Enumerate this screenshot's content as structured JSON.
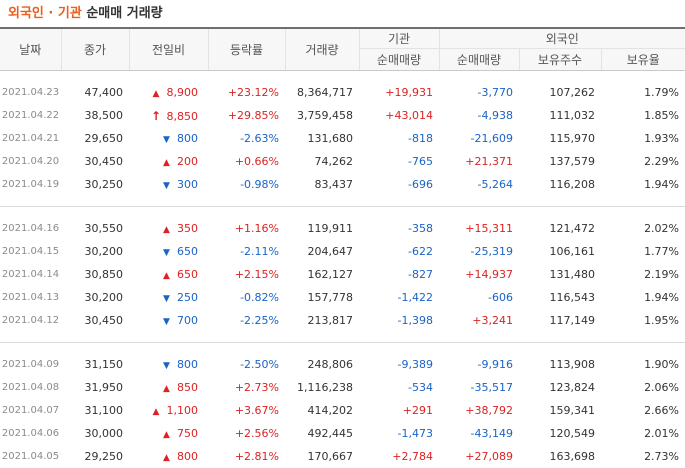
{
  "title": {
    "highlight": "외국인 · 기관",
    "rest": " 순매매 거래량"
  },
  "header": {
    "date": "날짜",
    "close": "종가",
    "change": "전일비",
    "rate": "등락률",
    "volume": "거래량",
    "institution": "기관",
    "foreign": "외국인",
    "inst_net": "순매매량",
    "for_net": "순매매량",
    "for_holding": "보유주수",
    "for_ratio": "보유율"
  },
  "colors": {
    "up": "#dd2222",
    "down": "#1a63c6",
    "accent": "#e8601c"
  },
  "groups": [
    {
      "rows": [
        {
          "date": "2021.04.23",
          "close": "47,400",
          "dir": "up",
          "arrow": "▲",
          "change": "8,900",
          "rate": "+23.12%",
          "volume": "8,364,717",
          "inst": "+19,931",
          "for_net": "-3,770",
          "holding": "107,262",
          "ratio": "1.79%"
        },
        {
          "date": "2021.04.22",
          "close": "38,500",
          "dir": "up",
          "arrow": "↑",
          "limit": true,
          "change": "8,850",
          "rate": "+29.85%",
          "volume": "3,759,458",
          "inst": "+43,014",
          "for_net": "-4,938",
          "holding": "111,032",
          "ratio": "1.85%"
        },
        {
          "date": "2021.04.21",
          "close": "29,650",
          "dir": "down",
          "arrow": "▼",
          "change": "800",
          "rate": "-2.63%",
          "volume": "131,680",
          "inst": "-818",
          "for_net": "-21,609",
          "holding": "115,970",
          "ratio": "1.93%"
        },
        {
          "date": "2021.04.20",
          "close": "30,450",
          "dir": "up",
          "arrow": "▲",
          "change": "200",
          "rate": "+0.66%",
          "volume": "74,262",
          "inst": "-765",
          "for_net": "+21,371",
          "holding": "137,579",
          "ratio": "2.29%"
        },
        {
          "date": "2021.04.19",
          "close": "30,250",
          "dir": "down",
          "arrow": "▼",
          "change": "300",
          "rate": "-0.98%",
          "volume": "83,437",
          "inst": "-696",
          "for_net": "-5,264",
          "holding": "116,208",
          "ratio": "1.94%"
        }
      ]
    },
    {
      "rows": [
        {
          "date": "2021.04.16",
          "close": "30,550",
          "dir": "up",
          "arrow": "▲",
          "change": "350",
          "rate": "+1.16%",
          "volume": "119,911",
          "inst": "-358",
          "for_net": "+15,311",
          "holding": "121,472",
          "ratio": "2.02%"
        },
        {
          "date": "2021.04.15",
          "close": "30,200",
          "dir": "down",
          "arrow": "▼",
          "change": "650",
          "rate": "-2.11%",
          "volume": "204,647",
          "inst": "-622",
          "for_net": "-25,319",
          "holding": "106,161",
          "ratio": "1.77%"
        },
        {
          "date": "2021.04.14",
          "close": "30,850",
          "dir": "up",
          "arrow": "▲",
          "change": "650",
          "rate": "+2.15%",
          "volume": "162,127",
          "inst": "-827",
          "for_net": "+14,937",
          "holding": "131,480",
          "ratio": "2.19%"
        },
        {
          "date": "2021.04.13",
          "close": "30,200",
          "dir": "down",
          "arrow": "▼",
          "change": "250",
          "rate": "-0.82%",
          "volume": "157,778",
          "inst": "-1,422",
          "for_net": "-606",
          "holding": "116,543",
          "ratio": "1.94%"
        },
        {
          "date": "2021.04.12",
          "close": "30,450",
          "dir": "down",
          "arrow": "▼",
          "change": "700",
          "rate": "-2.25%",
          "volume": "213,817",
          "inst": "-1,398",
          "for_net": "+3,241",
          "holding": "117,149",
          "ratio": "1.95%"
        }
      ]
    },
    {
      "rows": [
        {
          "date": "2021.04.09",
          "close": "31,150",
          "dir": "down",
          "arrow": "▼",
          "change": "800",
          "rate": "-2.50%",
          "volume": "248,806",
          "inst": "-9,389",
          "for_net": "-9,916",
          "holding": "113,908",
          "ratio": "1.90%"
        },
        {
          "date": "2021.04.08",
          "close": "31,950",
          "dir": "up",
          "arrow": "▲",
          "change": "850",
          "rate": "+2.73%",
          "volume": "1,116,238",
          "inst": "-534",
          "for_net": "-35,517",
          "holding": "123,824",
          "ratio": "2.06%"
        },
        {
          "date": "2021.04.07",
          "close": "31,100",
          "dir": "up",
          "arrow": "▲",
          "change": "1,100",
          "rate": "+3.67%",
          "volume": "414,202",
          "inst": "+291",
          "for_net": "+38,792",
          "holding": "159,341",
          "ratio": "2.66%"
        },
        {
          "date": "2021.04.06",
          "close": "30,000",
          "dir": "up",
          "arrow": "▲",
          "change": "750",
          "rate": "+2.56%",
          "volume": "492,445",
          "inst": "-1,473",
          "for_net": "-43,149",
          "holding": "120,549",
          "ratio": "2.01%"
        },
        {
          "date": "2021.04.05",
          "close": "29,250",
          "dir": "up",
          "arrow": "▲",
          "change": "800",
          "rate": "+2.81%",
          "volume": "170,667",
          "inst": "+2,784",
          "for_net": "+27,089",
          "holding": "163,698",
          "ratio": "2.73%"
        }
      ]
    }
  ]
}
